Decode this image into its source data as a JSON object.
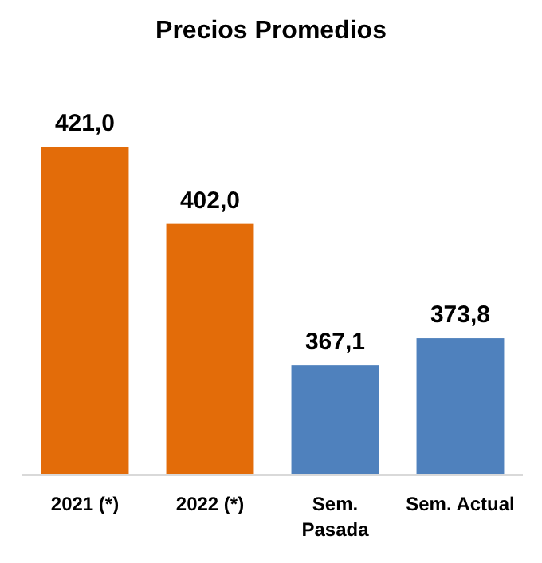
{
  "chart_data": {
    "type": "bar",
    "title": "Precios Promedios",
    "categories": [
      "2021 (*)",
      "2022 (*)",
      "Sem.\nPasada",
      "Sem. Actual"
    ],
    "values": [
      421.0,
      402.0,
      367.1,
      373.8
    ],
    "colors": [
      "#e36c09",
      "#e36c09",
      "#4f81bd",
      "#4f81bd"
    ],
    "value_labels": [
      "421,0",
      "402,0",
      "367,1",
      "373,8"
    ],
    "ylim": [
      340,
      421
    ],
    "tick_labels": "x"
  }
}
